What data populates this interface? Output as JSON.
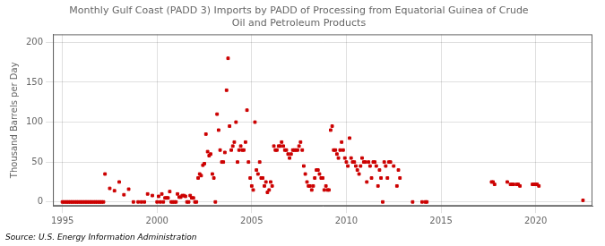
{
  "chart_data": {
    "type": "scatter",
    "title": "Monthly Gulf Coast (PADD 3) Imports by PADD of Processing from Equatorial Guinea of Crude\nOil and Petroleum Products",
    "ylabel": "Thousand Barrels per Day",
    "annotations": [
      "Source: U.S. Energy Information Administration"
    ],
    "color": "#cc0000",
    "marker": "square",
    "grid": true,
    "xlim": [
      1994.5,
      2023.0
    ],
    "ylim": [
      -5,
      210
    ],
    "xticks": [
      1995,
      2000,
      2005,
      2010,
      2015,
      2020
    ],
    "yticks": [
      0,
      50,
      100,
      150,
      200
    ],
    "x": [
      1995.0,
      1995.08,
      1995.17,
      1995.25,
      1995.33,
      1995.42,
      1995.5,
      1995.58,
      1995.67,
      1995.75,
      1995.83,
      1995.92,
      1996.0,
      1996.08,
      1996.17,
      1996.25,
      1996.33,
      1996.42,
      1996.5,
      1996.58,
      1996.67,
      1996.75,
      1996.83,
      1996.92,
      1997.0,
      1997.08,
      1997.17,
      1997.25,
      1997.5,
      1997.75,
      1998.0,
      1998.25,
      1998.5,
      1998.75,
      1999.0,
      1999.17,
      1999.33,
      1999.5,
      1999.75,
      2000.0,
      2000.08,
      2000.17,
      2000.25,
      2000.33,
      2000.42,
      2000.5,
      2000.58,
      2000.67,
      2000.75,
      2000.83,
      2000.92,
      2001.0,
      2001.08,
      2001.17,
      2001.25,
      2001.33,
      2001.42,
      2001.5,
      2001.58,
      2001.67,
      2001.75,
      2001.83,
      2001.92,
      2002.0,
      2002.08,
      2002.17,
      2002.25,
      2002.33,
      2002.42,
      2002.5,
      2002.58,
      2002.67,
      2002.75,
      2002.83,
      2002.92,
      2003.0,
      2003.08,
      2003.17,
      2003.25,
      2003.33,
      2003.42,
      2003.5,
      2003.58,
      2003.67,
      2003.75,
      2003.83,
      2003.92,
      2004.0,
      2004.08,
      2004.17,
      2004.25,
      2004.33,
      2004.42,
      2004.5,
      2004.58,
      2004.67,
      2004.75,
      2004.83,
      2004.92,
      2005.0,
      2005.08,
      2005.17,
      2005.25,
      2005.33,
      2005.42,
      2005.5,
      2005.58,
      2005.67,
      2005.75,
      2005.83,
      2005.92,
      2006.0,
      2006.08,
      2006.17,
      2006.25,
      2006.33,
      2006.42,
      2006.5,
      2006.58,
      2006.67,
      2006.75,
      2006.83,
      2006.92,
      2007.0,
      2007.08,
      2007.17,
      2007.25,
      2007.33,
      2007.42,
      2007.5,
      2007.58,
      2007.67,
      2007.75,
      2007.83,
      2007.92,
      2008.0,
      2008.08,
      2008.17,
      2008.25,
      2008.33,
      2008.42,
      2008.5,
      2008.58,
      2008.67,
      2008.75,
      2008.83,
      2008.92,
      2009.0,
      2009.08,
      2009.17,
      2009.25,
      2009.33,
      2009.42,
      2009.5,
      2009.58,
      2009.67,
      2009.75,
      2009.83,
      2009.92,
      2010.0,
      2010.08,
      2010.17,
      2010.25,
      2010.33,
      2010.42,
      2010.5,
      2010.58,
      2010.67,
      2010.75,
      2010.83,
      2010.92,
      2011.0,
      2011.08,
      2011.17,
      2011.25,
      2011.33,
      2011.42,
      2011.5,
      2011.58,
      2011.67,
      2011.75,
      2011.83,
      2011.92,
      2012.0,
      2012.08,
      2012.17,
      2012.25,
      2012.33,
      2012.5,
      2012.67,
      2012.75,
      2012.83,
      2013.5,
      2014.0,
      2014.17,
      2014.25,
      2017.67,
      2017.75,
      2017.83,
      2018.5,
      2018.67,
      2018.75,
      2018.83,
      2019.0,
      2019.08,
      2019.17,
      2019.83,
      2019.92,
      2020.0,
      2020.08,
      2020.17,
      2022.5
    ],
    "values": [
      0,
      0,
      0,
      0,
      0,
      0,
      0,
      0,
      0,
      0,
      0,
      0,
      0,
      0,
      0,
      0,
      0,
      0,
      0,
      0,
      0,
      0,
      0,
      0,
      0,
      0,
      0,
      35,
      17,
      14,
      25,
      9,
      16,
      0,
      0,
      0,
      0,
      10,
      8,
      0,
      7,
      0,
      10,
      0,
      5,
      5,
      5,
      13,
      0,
      0,
      0,
      0,
      10,
      6,
      6,
      8,
      8,
      7,
      0,
      0,
      8,
      5,
      5,
      0,
      0,
      30,
      35,
      33,
      46,
      48,
      85,
      63,
      58,
      60,
      35,
      30,
      0,
      110,
      90,
      65,
      50,
      50,
      62,
      140,
      180,
      95,
      65,
      70,
      75,
      100,
      50,
      65,
      70,
      65,
      65,
      75,
      115,
      50,
      30,
      20,
      15,
      100,
      40,
      35,
      50,
      30,
      30,
      20,
      25,
      12,
      15,
      25,
      20,
      70,
      65,
      65,
      70,
      70,
      75,
      70,
      65,
      65,
      60,
      55,
      60,
      65,
      65,
      65,
      65,
      70,
      75,
      65,
      45,
      35,
      25,
      20,
      20,
      15,
      20,
      30,
      40,
      40,
      35,
      30,
      30,
      15,
      20,
      15,
      15,
      90,
      95,
      65,
      65,
      60,
      55,
      65,
      75,
      65,
      55,
      50,
      45,
      80,
      55,
      50,
      50,
      45,
      40,
      35,
      45,
      55,
      50,
      50,
      25,
      50,
      45,
      30,
      50,
      50,
      45,
      20,
      40,
      30,
      0,
      50,
      45,
      30,
      50,
      50,
      45,
      20,
      40,
      30,
      0,
      0,
      0,
      0,
      25,
      25,
      22,
      25,
      22,
      22,
      22,
      22,
      22,
      20,
      22,
      22,
      22,
      22,
      20,
      2
    ]
  }
}
